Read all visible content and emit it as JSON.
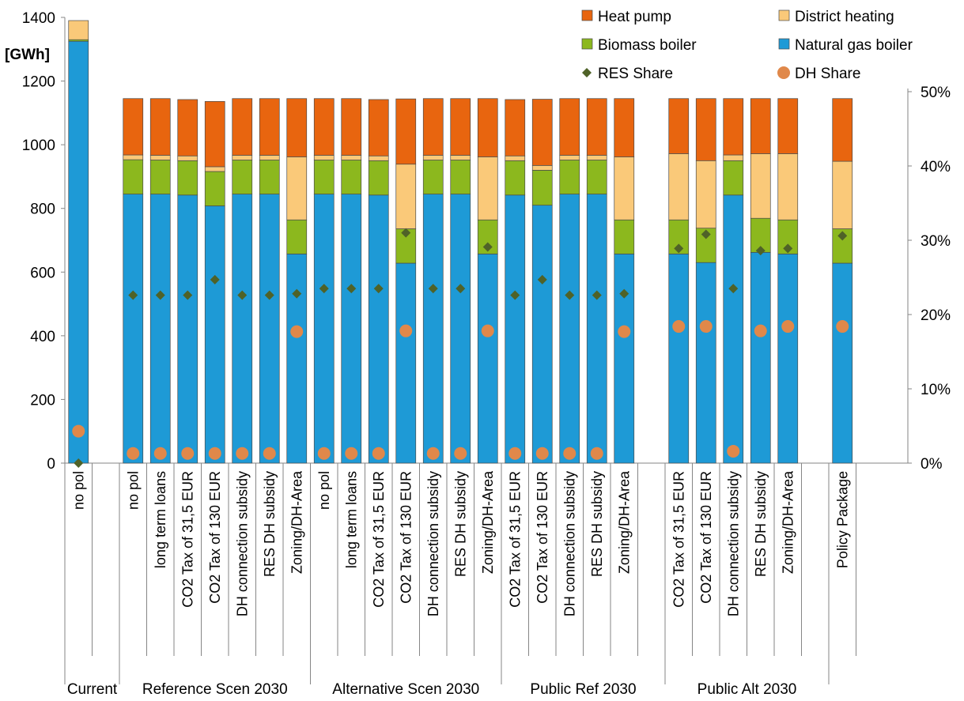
{
  "chart_data": {
    "type": "bar",
    "stacked": true,
    "units_label": "[GWh]",
    "ylim": [
      0,
      1400
    ],
    "y_ticks": [
      0,
      200,
      400,
      600,
      800,
      1000,
      1200,
      1400
    ],
    "y2lim": [
      0,
      0.6
    ],
    "y2_ticks": [
      "0%",
      "10%",
      "20%",
      "30%",
      "40%",
      "50%"
    ],
    "grid": false,
    "legend_position": "top-right",
    "colors": {
      "natural_gas": "#1E9AD6",
      "biomass": "#8CB81E",
      "district_heating": "#FAC979",
      "heat_pump": "#E8650F",
      "res_share": "#4F6228",
      "dh_share": "#E0884A"
    },
    "legend": [
      {
        "key": "heat_pump",
        "label": "Heat pump",
        "kind": "bar"
      },
      {
        "key": "district_heating",
        "label": "District heating",
        "kind": "bar"
      },
      {
        "key": "biomass",
        "label": "Biomass boiler",
        "kind": "bar"
      },
      {
        "key": "natural_gas",
        "label": "Natural gas boiler",
        "kind": "bar"
      },
      {
        "key": "res_share",
        "label": "RES Share",
        "kind": "diamond"
      },
      {
        "key": "dh_share",
        "label": "DH Share",
        "kind": "circle"
      }
    ],
    "groups": [
      {
        "label": "Current",
        "slots": 2,
        "categories": [
          {
            "label": "no pol",
            "natural_gas": 1325,
            "biomass": 5,
            "district_heating": 60,
            "heat_pump": 0,
            "res_share": 0.0,
            "dh_share": 0.043
          }
        ]
      },
      {
        "label": "Reference Scen 2030",
        "slots": 7,
        "categories": [
          {
            "label": "no pol",
            "natural_gas": 845,
            "biomass": 108,
            "district_heating": 15,
            "heat_pump": 177,
            "res_share": 0.226,
            "dh_share": 0.013
          },
          {
            "label": "long term loans",
            "natural_gas": 845,
            "biomass": 107,
            "district_heating": 15,
            "heat_pump": 178,
            "res_share": 0.226,
            "dh_share": 0.013
          },
          {
            "label": "CO2 Tax of 31,5 EUR",
            "natural_gas": 842,
            "biomass": 108,
            "district_heating": 15,
            "heat_pump": 177,
            "res_share": 0.226,
            "dh_share": 0.013
          },
          {
            "label": "CO2 Tax of 130 EUR",
            "natural_gas": 808,
            "biomass": 108,
            "district_heating": 15,
            "heat_pump": 205,
            "res_share": 0.247,
            "dh_share": 0.013
          },
          {
            "label": "DH connection subsidy",
            "natural_gas": 845,
            "biomass": 107,
            "district_heating": 15,
            "heat_pump": 178,
            "res_share": 0.226,
            "dh_share": 0.013
          },
          {
            "label": "RES DH subsidy",
            "natural_gas": 845,
            "biomass": 107,
            "district_heating": 15,
            "heat_pump": 178,
            "res_share": 0.226,
            "dh_share": 0.013
          },
          {
            "label": "Zoning/DH-Area",
            "natural_gas": 657,
            "biomass": 107,
            "district_heating": 198,
            "heat_pump": 183,
            "res_share": 0.228,
            "dh_share": 0.177
          }
        ]
      },
      {
        "label": "Alternative Scen 2030",
        "slots": 7,
        "categories": [
          {
            "label": "no pol",
            "natural_gas": 845,
            "biomass": 107,
            "district_heating": 15,
            "heat_pump": 178,
            "res_share": 0.235,
            "dh_share": 0.013
          },
          {
            "label": "long term loans",
            "natural_gas": 845,
            "biomass": 107,
            "district_heating": 15,
            "heat_pump": 178,
            "res_share": 0.235,
            "dh_share": 0.013
          },
          {
            "label": "CO2 Tax of 31,5 EUR",
            "natural_gas": 842,
            "biomass": 108,
            "district_heating": 15,
            "heat_pump": 177,
            "res_share": 0.235,
            "dh_share": 0.013
          },
          {
            "label": "CO2 Tax of 130 EUR",
            "natural_gas": 628,
            "biomass": 108,
            "district_heating": 203,
            "heat_pump": 205,
            "res_share": 0.31,
            "dh_share": 0.178
          },
          {
            "label": "DH connection subsidy",
            "natural_gas": 845,
            "biomass": 107,
            "district_heating": 15,
            "heat_pump": 178,
            "res_share": 0.235,
            "dh_share": 0.013
          },
          {
            "label": "RES DH subsidy",
            "natural_gas": 845,
            "biomass": 107,
            "district_heating": 15,
            "heat_pump": 178,
            "res_share": 0.235,
            "dh_share": 0.013
          },
          {
            "label": "Zoning/DH-Area",
            "natural_gas": 657,
            "biomass": 107,
            "district_heating": 198,
            "heat_pump": 183,
            "res_share": 0.291,
            "dh_share": 0.178
          }
        ]
      },
      {
        "label": "Public Ref 2030",
        "slots": 6,
        "categories": [
          {
            "label": "CO2 Tax of 31,5 EUR",
            "natural_gas": 842,
            "biomass": 108,
            "district_heating": 15,
            "heat_pump": 177,
            "res_share": 0.226,
            "dh_share": 0.013
          },
          {
            "label": "CO2 Tax of 130 EUR",
            "natural_gas": 810,
            "biomass": 110,
            "district_heating": 15,
            "heat_pump": 208,
            "res_share": 0.247,
            "dh_share": 0.013
          },
          {
            "label": "DH connection subsidy",
            "natural_gas": 845,
            "biomass": 107,
            "district_heating": 15,
            "heat_pump": 178,
            "res_share": 0.226,
            "dh_share": 0.013
          },
          {
            "label": "RES DH subsidy",
            "natural_gas": 845,
            "biomass": 107,
            "district_heating": 15,
            "heat_pump": 178,
            "res_share": 0.226,
            "dh_share": 0.013
          },
          {
            "label": "Zoning/DH-Area",
            "natural_gas": 657,
            "biomass": 107,
            "district_heating": 198,
            "heat_pump": 183,
            "res_share": 0.228,
            "dh_share": 0.177
          }
        ]
      },
      {
        "label": "Public Alt 2030",
        "slots": 6,
        "categories": [
          {
            "label": "CO2 Tax of 31,5 EUR",
            "natural_gas": 657,
            "biomass": 107,
            "district_heating": 208,
            "heat_pump": 173,
            "res_share": 0.289,
            "dh_share": 0.184
          },
          {
            "label": "CO2 Tax of 130 EUR",
            "natural_gas": 630,
            "biomass": 108,
            "district_heating": 212,
            "heat_pump": 195,
            "res_share": 0.308,
            "dh_share": 0.184
          },
          {
            "label": "DH connection subsidy",
            "natural_gas": 842,
            "biomass": 108,
            "district_heating": 18,
            "heat_pump": 177,
            "res_share": 0.235,
            "dh_share": 0.016
          },
          {
            "label": "RES DH subsidy",
            "natural_gas": 662,
            "biomass": 107,
            "district_heating": 203,
            "heat_pump": 173,
            "res_share": 0.286,
            "dh_share": 0.178
          },
          {
            "label": "Zoning/DH-Area",
            "natural_gas": 657,
            "biomass": 107,
            "district_heating": 208,
            "heat_pump": 173,
            "res_share": 0.289,
            "dh_share": 0.184
          }
        ]
      },
      {
        "label": "",
        "slots": 1,
        "categories": [
          {
            "label": "Policy Package",
            "natural_gas": 628,
            "biomass": 108,
            "district_heating": 212,
            "heat_pump": 197,
            "res_share": 0.306,
            "dh_share": 0.184
          }
        ]
      }
    ]
  }
}
